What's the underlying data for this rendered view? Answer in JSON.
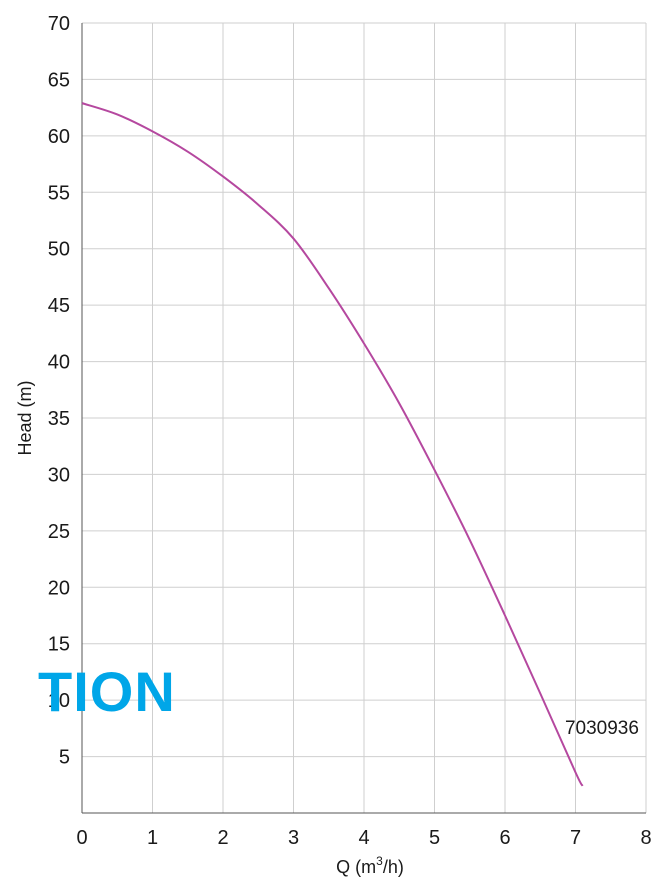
{
  "chart_data": {
    "type": "line",
    "xlabel": {
      "prefix": "Q (m",
      "sup": "3",
      "suffix": "/h)"
    },
    "ylabel": "Head (m)",
    "xlim": [
      0,
      8
    ],
    "ylim": [
      0,
      70
    ],
    "x_ticks": [
      0,
      1,
      2,
      3,
      4,
      5,
      6,
      7,
      8
    ],
    "y_ticks": [
      5,
      10,
      15,
      20,
      25,
      30,
      35,
      40,
      45,
      50,
      55,
      60,
      65,
      70
    ],
    "grid": true,
    "series": [
      {
        "color": "#b5489f",
        "x": [
          0,
          0.5,
          1,
          1.5,
          2,
          2.5,
          3,
          3.5,
          4,
          4.5,
          5,
          5.5,
          6,
          6.5,
          7,
          7.1
        ],
        "y": [
          62.9,
          61.9,
          60.4,
          58.6,
          56.4,
          53.9,
          50.9,
          46.5,
          41.6,
          36.3,
          30.4,
          24.2,
          17.5,
          10.6,
          3.6,
          2.4
        ]
      }
    ],
    "annotations": [
      {
        "text": "7030936",
        "x": 7.9,
        "y": 7.0
      }
    ]
  },
  "overlay": {
    "text": "TION",
    "color": "#00a6e8"
  }
}
